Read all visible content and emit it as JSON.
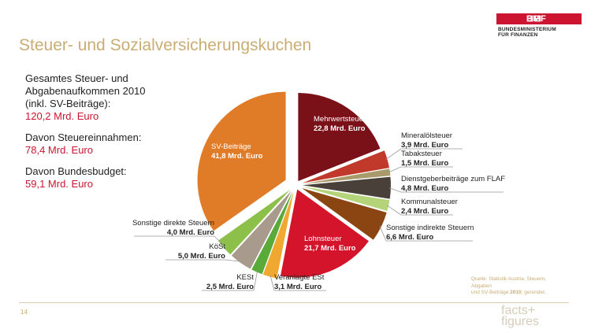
{
  "page": {
    "title": "Steuer- und Sozialversicherungskuchen",
    "page_number": "14",
    "facts_line1": "facts+",
    "facts_line2": "figures",
    "source_line1": "Quelle: Statistik Austria; Steuern, Abgaben",
    "source_line2_a": "und SV-Beiträge ",
    "source_line2_b": "2010",
    "source_line2_c": "; gerundet."
  },
  "logo": {
    "mark": "⊟⊟",
    "name": "BMF",
    "line1": "BUNDESMINISTERIUM",
    "line2": "FÜR FINANZEN"
  },
  "summary": {
    "total_label_1": "Gesamtes Steuer- und",
    "total_label_2": "Abgabenaufkommen 2010",
    "total_label_3": "(inkl. SV-Beiträge):",
    "total_value": "120,2 Mrd. Euro",
    "tax_label": "Davon Steuereinnahmen:",
    "tax_value": "78,4 Mrd. Euro",
    "budget_label": "Davon Bundesbudget:",
    "budget_value": "59,1 Mrd. Euro"
  },
  "colors": {
    "title": "#c9ad74",
    "value_red": "#cc1530"
  },
  "chart_data": {
    "type": "pie",
    "unit": "Mrd. Euro",
    "slices": [
      {
        "name": "Mehrwertsteuer",
        "value": 22.8,
        "label": "22,8 Mrd. Euro",
        "color": "#7a1018"
      },
      {
        "name": "Mineralölsteuer",
        "value": 3.9,
        "label": "3,9 Mrd. Euro",
        "color": "#c0392b"
      },
      {
        "name": "Tabaksteuer",
        "value": 1.5,
        "label": "1,5 Mrd. Euro",
        "color": "#a89a6a"
      },
      {
        "name": "Dienstgeberbeiträge zum FLAF",
        "value": 4.8,
        "label": "4,8 Mrd. Euro",
        "color": "#4a403a"
      },
      {
        "name": "Kommunalsteuer",
        "value": 2.4,
        "label": "2,4 Mrd. Euro",
        "color": "#b5d47a"
      },
      {
        "name": "Sonstige indirekte Steuern",
        "value": 6.6,
        "label": "6,6 Mrd. Euro",
        "color": "#8b4513"
      },
      {
        "name": "Lohnsteuer",
        "value": 21.7,
        "label": "21,7 Mrd. Euro",
        "color": "#d4142a"
      },
      {
        "name": "Veranlagte ESt",
        "value": 3.1,
        "label": "3,1 Mrd. Euro",
        "color": "#f0a830"
      },
      {
        "name": "KESt",
        "value": 2.5,
        "label": "2,5 Mrd. Euro",
        "color": "#5aaa3a"
      },
      {
        "name": "KöSt",
        "value": 5.0,
        "label": "5,0 Mrd. Euro",
        "color": "#a89a8c"
      },
      {
        "name": "Sonstige direkte Steuern",
        "value": 4.0,
        "label": "4,0 Mrd. Euro",
        "color": "#8cc04a"
      },
      {
        "name": "SV-Beiträge",
        "value": 41.8,
        "label": "41,8 Mrd. Euro",
        "color": "#e07b28"
      }
    ]
  }
}
